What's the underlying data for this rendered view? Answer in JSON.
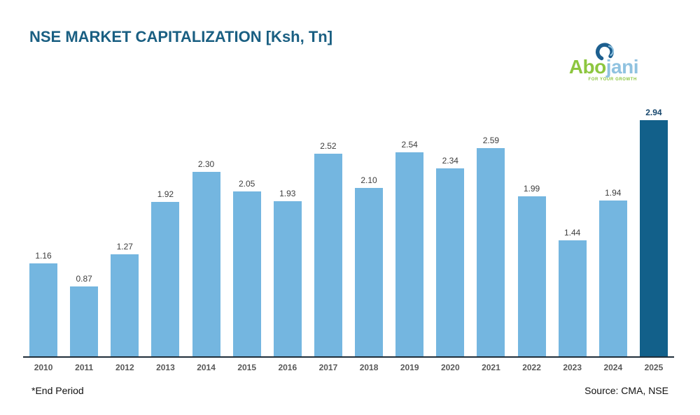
{
  "header": {
    "title": "NSE MARKET CAPITALIZATION [Ksh, Tn]"
  },
  "logo": {
    "text_green": "Abo",
    "text_blue": "jani",
    "tagline": "FOR YOUR GROWTH",
    "colors": {
      "green": "#8dc63f",
      "blue": "#8fc2e0",
      "swirl": "#1d5f8f"
    }
  },
  "chart_data": {
    "type": "bar",
    "title": "NSE MARKET CAPITALIZATION [Ksh, Tn]",
    "xlabel": "",
    "ylabel": "",
    "categories": [
      "2010",
      "2011",
      "2012",
      "2013",
      "2014",
      "2015",
      "2016",
      "2017",
      "2018",
      "2019",
      "2020",
      "2021",
      "2022",
      "2023",
      "2024",
      "2025"
    ],
    "values": [
      1.16,
      0.87,
      1.27,
      1.92,
      2.3,
      2.05,
      1.93,
      2.52,
      2.1,
      2.54,
      2.34,
      2.59,
      1.99,
      1.44,
      1.94,
      2.94
    ],
    "value_labels": [
      "1.16",
      "0.87",
      "1.27",
      "1.92",
      "2.30",
      "2.05",
      "1.93",
      "2.52",
      "2.10",
      "2.54",
      "2.34",
      "2.59",
      "1.99",
      "1.44",
      "1.94",
      "2.94"
    ],
    "ylim": [
      0,
      3.2
    ],
    "grid": false,
    "legend": false,
    "bar_color": "#74b6e0",
    "highlight_index": 15,
    "highlight_color": "#12608a",
    "value_label_color": "#3d3d3d",
    "highlight_label_color": "#17476d",
    "axis_line_color": "#1f2d38",
    "year_label_color": "#595959"
  },
  "footer": {
    "note": "*End Period",
    "source": "Source: CMA, NSE"
  }
}
